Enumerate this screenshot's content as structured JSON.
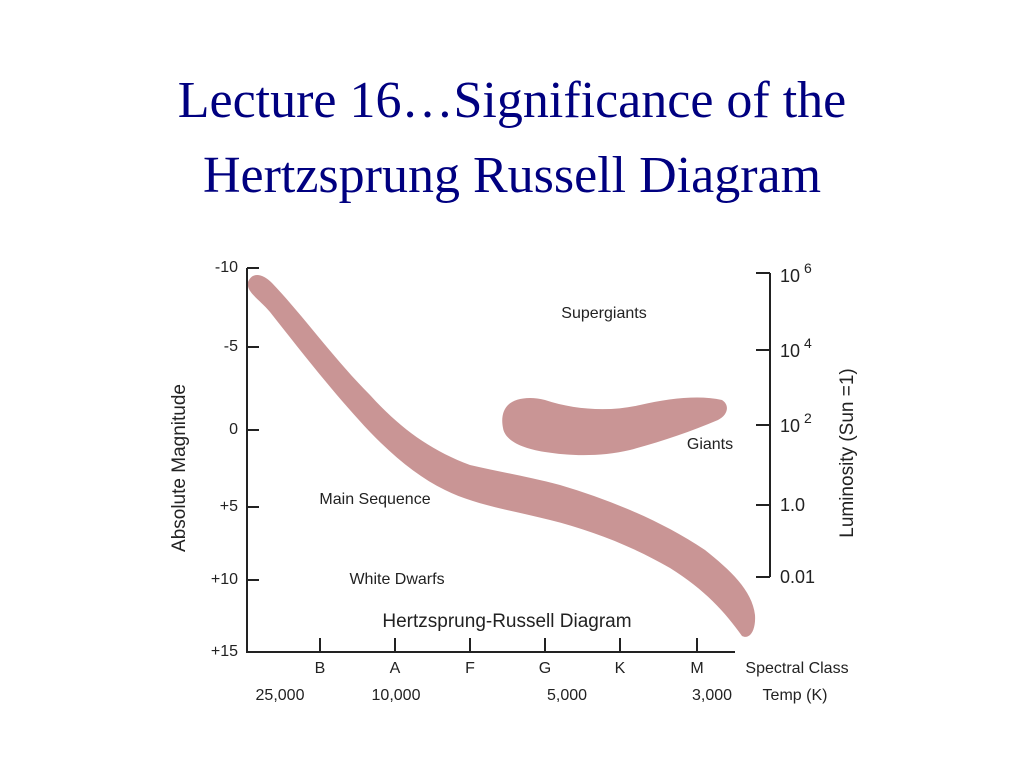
{
  "title": [
    "Lecture 16…Significance of the",
    "Hertzsprung Russell Diagram"
  ],
  "diagram": {
    "title": "Hertzsprung-Russell Diagram",
    "left_axis": {
      "label": "Absolute Magnitude",
      "ticks": [
        "-10",
        "-5",
        "0",
        "+5",
        "+10",
        "+15"
      ]
    },
    "right_axis": {
      "label": "Luminosity (Sun =1)",
      "ticks": [
        {
          "base": "10",
          "exponent": "6"
        },
        {
          "base": "10",
          "exponent": "4"
        },
        {
          "base": "10",
          "exponent": "2"
        },
        "1.0",
        "0.01"
      ]
    },
    "spectral": {
      "label": "Spectral Class",
      "classes": [
        "B",
        "A",
        "F",
        "G",
        "K",
        "M"
      ]
    },
    "temperature": {
      "label": "Temp (K)",
      "values": [
        "25,000",
        "10,000",
        "5,000",
        "3,000"
      ]
    },
    "regions": {
      "supergiants": "Supergiants",
      "giants": "Giants",
      "main_sequence": "Main Sequence",
      "white_dwarfs": "White Dwarfs"
    }
  }
}
